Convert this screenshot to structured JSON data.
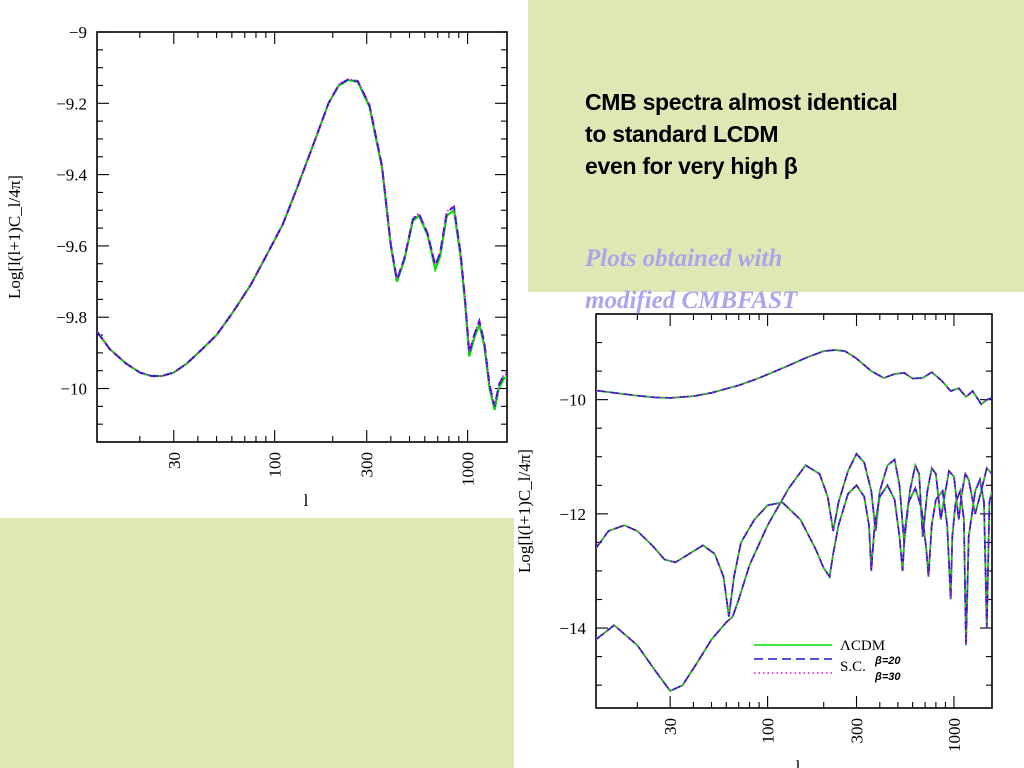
{
  "slide": {
    "headline_lines": [
      "CMB spectra almost identical",
      "to standard LCDM",
      "even for very high β"
    ],
    "note_lines": [
      "Plots obtained with",
      "modified CMBFAST"
    ],
    "colors": {
      "background": "#dfe8b5",
      "note_text": "#a9a6ec",
      "lcdm": "#00dd00",
      "sc20": "#1818cc",
      "sc30": "#ee00ee"
    }
  },
  "chart_data": [
    {
      "type": "line",
      "xscale": "log",
      "xlim": [
        12,
        1600
      ],
      "ylim": [
        -10.15,
        -9.0
      ],
      "xticks": [
        30,
        100,
        300,
        1000
      ],
      "yticks": [
        -9,
        -9.2,
        -9.4,
        -9.6,
        -9.8,
        -10
      ],
      "ytick_labels": [
        "−9",
        "−9.2",
        "−9.4",
        "−9.6",
        "−9.8",
        "−10"
      ],
      "xlabel": "l",
      "ylabel": "Log[l(l+1)C_l/4π]",
      "series": [
        {
          "style": "solid",
          "color": "#00dd00",
          "x": [
            12,
            14,
            17,
            20,
            23,
            26,
            30,
            35,
            42,
            50,
            60,
            75,
            90,
            110,
            130,
            160,
            190,
            215,
            240,
            270,
            310,
            360,
            400,
            430,
            470,
            520,
            560,
            620,
            680,
            720,
            780,
            850,
            920,
            970,
            1020,
            1080,
            1150,
            1220,
            1300,
            1380,
            1450,
            1550,
            1600
          ],
          "y": [
            -9.84,
            -9.89,
            -9.93,
            -9.955,
            -9.965,
            -9.965,
            -9.955,
            -9.93,
            -9.89,
            -9.85,
            -9.79,
            -9.71,
            -9.63,
            -9.54,
            -9.44,
            -9.31,
            -9.2,
            -9.15,
            -9.135,
            -9.14,
            -9.21,
            -9.38,
            -9.6,
            -9.7,
            -9.64,
            -9.53,
            -9.515,
            -9.57,
            -9.665,
            -9.63,
            -9.515,
            -9.5,
            -9.63,
            -9.76,
            -9.91,
            -9.86,
            -9.82,
            -9.88,
            -10.0,
            -10.06,
            -10.0,
            -9.97,
            -9.97
          ]
        },
        {
          "style": "dashed",
          "color": "#1818cc",
          "x": [
            12,
            14,
            17,
            20,
            23,
            26,
            30,
            35,
            42,
            50,
            60,
            75,
            90,
            110,
            130,
            160,
            190,
            215,
            240,
            270,
            310,
            360,
            400,
            430,
            470,
            520,
            560,
            620,
            680,
            720,
            780,
            850,
            920,
            970,
            1020,
            1080,
            1150,
            1220,
            1300,
            1380,
            1450,
            1550,
            1600
          ],
          "y": [
            -9.84,
            -9.89,
            -9.93,
            -9.955,
            -9.965,
            -9.965,
            -9.955,
            -9.93,
            -9.89,
            -9.85,
            -9.79,
            -9.71,
            -9.63,
            -9.54,
            -9.44,
            -9.31,
            -9.2,
            -9.148,
            -9.133,
            -9.138,
            -9.205,
            -9.375,
            -9.595,
            -9.695,
            -9.635,
            -9.525,
            -9.51,
            -9.565,
            -9.655,
            -9.62,
            -9.505,
            -9.49,
            -9.62,
            -9.75,
            -9.9,
            -9.85,
            -9.81,
            -9.87,
            -9.99,
            -10.05,
            -9.99,
            -9.96,
            -9.96
          ]
        },
        {
          "style": "dotted",
          "color": "#ee00ee",
          "x": [
            12,
            14,
            17,
            20,
            23,
            26,
            30,
            35,
            42,
            50,
            60,
            75,
            90,
            110,
            130,
            160,
            190,
            215,
            240,
            270,
            310,
            360,
            400,
            430,
            470,
            520,
            560,
            620,
            680,
            720,
            780,
            850,
            920,
            970,
            1020,
            1080,
            1150,
            1220,
            1300,
            1380,
            1450,
            1550,
            1600
          ],
          "y": [
            -9.84,
            -9.89,
            -9.93,
            -9.955,
            -9.965,
            -9.965,
            -9.955,
            -9.93,
            -9.89,
            -9.85,
            -9.79,
            -9.71,
            -9.63,
            -9.54,
            -9.44,
            -9.31,
            -9.2,
            -9.147,
            -9.132,
            -9.137,
            -9.203,
            -9.373,
            -9.593,
            -9.693,
            -9.633,
            -9.523,
            -9.508,
            -9.563,
            -9.653,
            -9.618,
            -9.503,
            -9.488,
            -9.618,
            -9.748,
            -9.898,
            -9.848,
            -9.808,
            -9.868,
            -9.988,
            -10.048,
            -9.988,
            -9.958,
            -9.958
          ]
        }
      ]
    },
    {
      "type": "line",
      "xscale": "log",
      "xlim": [
        12,
        1600
      ],
      "ylim": [
        -15.4,
        -8.5
      ],
      "xticks": [
        30,
        100,
        300,
        1000
      ],
      "yticks": [
        -10,
        -12,
        -14
      ],
      "ytick_labels": [
        "−10",
        "−12",
        "−14"
      ],
      "xlabel": "l",
      "ylabel": "Log[l(l+1)C_l/4π]",
      "legend": {
        "position": "bottom-right",
        "entries": [
          {
            "label": "ΛCDM",
            "color": "#00dd00",
            "style": "solid"
          },
          {
            "label": "S.C.",
            "sub": "β=20",
            "color": "#1818cc",
            "style": "dashed"
          },
          {
            "label": "",
            "sub": "β=30",
            "color": "#ee00ee",
            "style": "dotted"
          }
        ]
      },
      "series": [
        {
          "group": "TT",
          "x": [
            12,
            15,
            20,
            25,
            30,
            40,
            50,
            70,
            90,
            120,
            160,
            200,
            230,
            260,
            300,
            360,
            420,
            480,
            540,
            600,
            680,
            760,
            860,
            960,
            1060,
            1160,
            1260,
            1400,
            1500,
            1600
          ],
          "y": [
            -9.84,
            -9.88,
            -9.93,
            -9.96,
            -9.97,
            -9.94,
            -9.88,
            -9.75,
            -9.62,
            -9.45,
            -9.27,
            -9.15,
            -9.13,
            -9.15,
            -9.28,
            -9.5,
            -9.62,
            -9.55,
            -9.53,
            -9.63,
            -9.62,
            -9.52,
            -9.67,
            -9.85,
            -9.8,
            -9.95,
            -9.85,
            -10.08,
            -10.0,
            -9.97
          ]
        },
        {
          "group": "EE",
          "x": [
            12,
            15,
            20,
            25,
            30,
            35,
            42,
            50,
            60,
            65,
            70,
            80,
            100,
            130,
            160,
            190,
            210,
            225,
            240,
            270,
            300,
            330,
            360,
            380,
            400,
            440,
            480,
            510,
            540,
            580,
            620,
            650,
            680,
            720,
            760,
            800,
            850,
            900,
            940,
            1000,
            1060,
            1100,
            1150,
            1200,
            1300,
            1400,
            1500,
            1600
          ],
          "y": [
            -14.2,
            -13.95,
            -14.3,
            -14.75,
            -15.1,
            -15.0,
            -14.6,
            -14.2,
            -13.9,
            -13.8,
            -13.5,
            -12.9,
            -12.2,
            -11.55,
            -11.15,
            -11.3,
            -11.7,
            -12.3,
            -11.8,
            -11.25,
            -10.95,
            -11.1,
            -11.6,
            -12.3,
            -11.6,
            -11.15,
            -11.05,
            -11.5,
            -12.5,
            -11.6,
            -11.15,
            -11.3,
            -12.4,
            -11.6,
            -11.2,
            -11.3,
            -12.1,
            -11.6,
            -11.25,
            -11.35,
            -12.1,
            -11.65,
            -11.3,
            -11.4,
            -12.0,
            -11.6,
            -11.2,
            -11.3
          ]
        },
        {
          "group": "TE",
          "x": [
            12,
            14,
            17,
            20,
            24,
            28,
            32,
            38,
            45,
            52,
            58,
            62,
            66,
            72,
            85,
            100,
            120,
            150,
            180,
            200,
            215,
            225,
            240,
            270,
            300,
            330,
            350,
            360,
            375,
            400,
            440,
            480,
            510,
            530,
            545,
            570,
            620,
            670,
            710,
            730,
            760,
            800,
            870,
            920,
            960,
            980,
            1020,
            1080,
            1130,
            1160,
            1200,
            1300,
            1380,
            1450,
            1500,
            1550,
            1600
          ],
          "y": [
            -12.6,
            -12.3,
            -12.2,
            -12.3,
            -12.55,
            -12.8,
            -12.85,
            -12.7,
            -12.55,
            -12.7,
            -13.1,
            -13.8,
            -13.1,
            -12.5,
            -12.1,
            -11.85,
            -11.8,
            -12.1,
            -12.6,
            -12.95,
            -13.1,
            -12.7,
            -12.2,
            -11.65,
            -11.5,
            -11.7,
            -12.2,
            -13.0,
            -12.2,
            -11.7,
            -11.5,
            -11.75,
            -12.4,
            -13.0,
            -12.3,
            -11.8,
            -11.55,
            -11.9,
            -12.6,
            -13.1,
            -12.2,
            -11.75,
            -11.6,
            -12.2,
            -13.5,
            -12.4,
            -11.8,
            -11.6,
            -12.1,
            -14.3,
            -12.4,
            -11.6,
            -11.4,
            -11.8,
            -14.0,
            -11.8,
            -11.6
          ]
        }
      ]
    }
  ]
}
